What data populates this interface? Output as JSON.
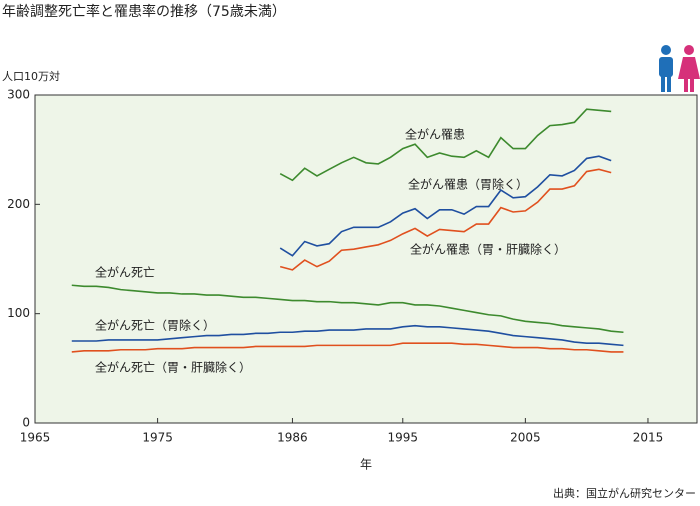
{
  "chart_data": {
    "type": "line",
    "title": "年齢調整死亡率と罹患率の推移（75歳未満）",
    "y_label": "人口10万対",
    "x_label": "年",
    "source": "出典：国立がん研究センター",
    "xlim": [
      1965,
      2019
    ],
    "xticks": [
      1965,
      1975,
      1986,
      1995,
      2005,
      2015
    ],
    "ylim": [
      0,
      300
    ],
    "yticks": [
      0,
      100,
      200,
      300
    ],
    "series": [
      {
        "name": "全がん罹患",
        "color": "#3d8a2e",
        "x": [
          1985,
          1986,
          1987,
          1988,
          1989,
          1990,
          1991,
          1992,
          1993,
          1994,
          1995,
          1996,
          1997,
          1998,
          1999,
          2000,
          2001,
          2002,
          2003,
          2004,
          2005,
          2006,
          2007,
          2008,
          2009,
          2010,
          2011,
          2012
        ],
        "values": [
          228,
          222,
          233,
          226,
          232,
          238,
          243,
          238,
          237,
          243,
          251,
          255,
          243,
          247,
          244,
          243,
          249,
          243,
          261,
          251,
          251,
          263,
          272,
          273,
          275,
          287,
          286,
          285
        ]
      },
      {
        "name": "全がん罹患（胃除く）",
        "color": "#1f4fa0",
        "x": [
          1985,
          1986,
          1987,
          1988,
          1989,
          1990,
          1991,
          1992,
          1993,
          1994,
          1995,
          1996,
          1997,
          1998,
          1999,
          2000,
          2001,
          2002,
          2003,
          2004,
          2005,
          2006,
          2007,
          2008,
          2009,
          2010,
          2011,
          2012
        ],
        "values": [
          160,
          153,
          166,
          162,
          164,
          175,
          179,
          179,
          179,
          184,
          192,
          196,
          187,
          195,
          195,
          191,
          198,
          198,
          213,
          206,
          207,
          216,
          227,
          226,
          231,
          242,
          244,
          240
        ]
      },
      {
        "name": "全がん罹患（胃・肝臓除く）",
        "color": "#e0501e",
        "x": [
          1985,
          1986,
          1987,
          1988,
          1989,
          1990,
          1991,
          1992,
          1993,
          1994,
          1995,
          1996,
          1997,
          1998,
          1999,
          2000,
          2001,
          2002,
          2003,
          2004,
          2005,
          2006,
          2007,
          2008,
          2009,
          2010,
          2011,
          2012
        ],
        "values": [
          143,
          140,
          149,
          143,
          148,
          158,
          159,
          161,
          163,
          167,
          173,
          178,
          171,
          177,
          176,
          175,
          182,
          182,
          197,
          193,
          194,
          202,
          214,
          214,
          217,
          230,
          232,
          229
        ]
      },
      {
        "name": "全がん死亡",
        "color": "#3d8a2e",
        "x": [
          1968,
          1969,
          1970,
          1971,
          1972,
          1973,
          1974,
          1975,
          1976,
          1977,
          1978,
          1979,
          1980,
          1981,
          1982,
          1983,
          1984,
          1985,
          1986,
          1987,
          1988,
          1989,
          1990,
          1991,
          1992,
          1993,
          1994,
          1995,
          1996,
          1997,
          1998,
          1999,
          2000,
          2001,
          2002,
          2003,
          2004,
          2005,
          2006,
          2007,
          2008,
          2009,
          2010,
          2011,
          2012,
          2013
        ],
        "values": [
          126,
          125,
          125,
          124,
          122,
          121,
          120,
          119,
          119,
          118,
          118,
          117,
          117,
          116,
          115,
          115,
          114,
          113,
          112,
          112,
          111,
          111,
          110,
          110,
          109,
          108,
          110,
          110,
          108,
          108,
          107,
          105,
          103,
          101,
          99,
          98,
          95,
          93,
          92,
          91,
          89,
          88,
          87,
          86,
          84,
          83
        ]
      },
      {
        "name": "全がん死亡（胃除く）",
        "color": "#1f4fa0",
        "x": [
          1968,
          1969,
          1970,
          1971,
          1972,
          1973,
          1974,
          1975,
          1976,
          1977,
          1978,
          1979,
          1980,
          1981,
          1982,
          1983,
          1984,
          1985,
          1986,
          1987,
          1988,
          1989,
          1990,
          1991,
          1992,
          1993,
          1994,
          1995,
          1996,
          1997,
          1998,
          1999,
          2000,
          2001,
          2002,
          2003,
          2004,
          2005,
          2006,
          2007,
          2008,
          2009,
          2010,
          2011,
          2012,
          2013
        ],
        "values": [
          75,
          75,
          75,
          76,
          76,
          76,
          76,
          76,
          77,
          78,
          79,
          80,
          80,
          81,
          81,
          82,
          82,
          83,
          83,
          84,
          84,
          85,
          85,
          85,
          86,
          86,
          86,
          88,
          89,
          88,
          88,
          87,
          86,
          85,
          84,
          82,
          80,
          79,
          78,
          77,
          76,
          74,
          73,
          73,
          72,
          71
        ]
      },
      {
        "name": "全がん死亡（胃・肝臓除く）",
        "color": "#e0501e",
        "x": [
          1968,
          1969,
          1970,
          1971,
          1972,
          1973,
          1974,
          1975,
          1976,
          1977,
          1978,
          1979,
          1980,
          1981,
          1982,
          1983,
          1984,
          1985,
          1986,
          1987,
          1988,
          1989,
          1990,
          1991,
          1992,
          1993,
          1994,
          1995,
          1996,
          1997,
          1998,
          1999,
          2000,
          2001,
          2002,
          2003,
          2004,
          2005,
          2006,
          2007,
          2008,
          2009,
          2010,
          2011,
          2012,
          2013
        ],
        "values": [
          65,
          66,
          66,
          66,
          67,
          67,
          67,
          68,
          68,
          68,
          69,
          69,
          69,
          69,
          69,
          70,
          70,
          70,
          70,
          70,
          71,
          71,
          71,
          71,
          71,
          71,
          71,
          73,
          73,
          73,
          73,
          73,
          72,
          72,
          71,
          70,
          69,
          69,
          69,
          68,
          68,
          67,
          67,
          66,
          65,
          65
        ]
      }
    ]
  }
}
